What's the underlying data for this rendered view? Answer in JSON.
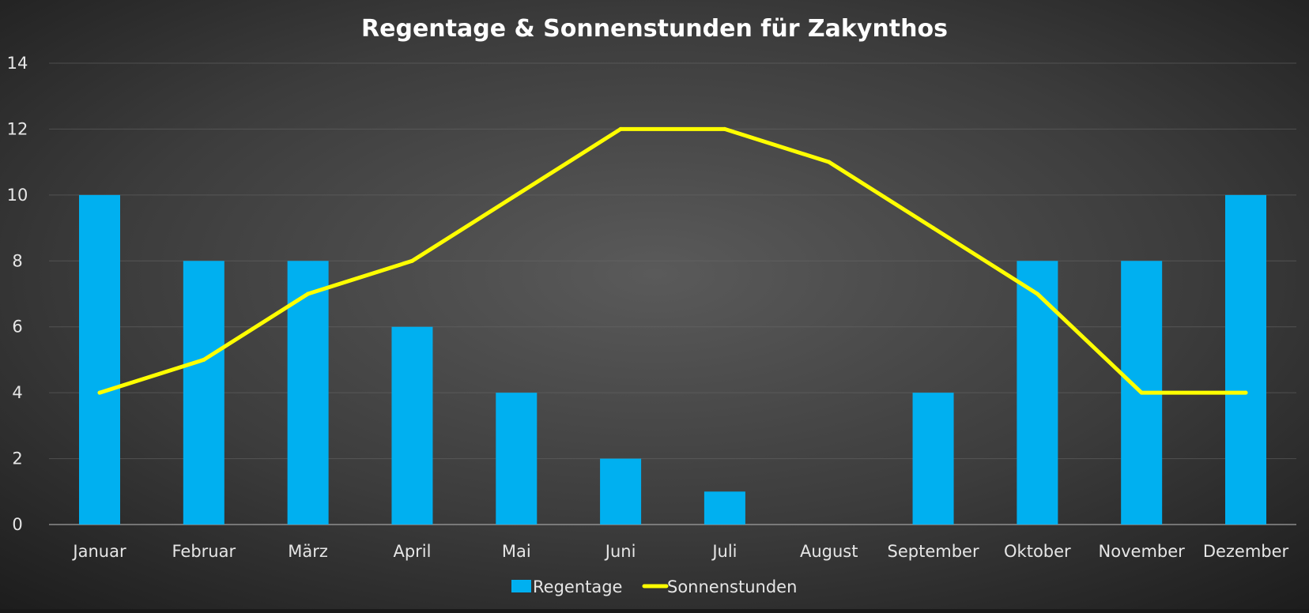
{
  "chart_data": {
    "type": "bar",
    "title": "Regentage & Sonnenstunden für Zakynthos",
    "categories": [
      "Januar",
      "Februar",
      "März",
      "April",
      "Mai",
      "Juni",
      "Juli",
      "August",
      "September",
      "Oktober",
      "November",
      "Dezember"
    ],
    "series": [
      {
        "name": "Regentage",
        "type": "bar",
        "color": "#00b0f0",
        "values": [
          10,
          8,
          8,
          6,
          4,
          2,
          1,
          0,
          4,
          8,
          8,
          10
        ]
      },
      {
        "name": "Sonnenstunden",
        "type": "line",
        "color": "#ffff00",
        "values": [
          4,
          5,
          7,
          8,
          10,
          12,
          12,
          11,
          9,
          7,
          4,
          4
        ]
      }
    ],
    "ylim": [
      0,
      14
    ],
    "yticks": [
      0,
      2,
      4,
      6,
      8,
      10,
      12,
      14
    ],
    "grid": true,
    "legend": "bottom"
  }
}
